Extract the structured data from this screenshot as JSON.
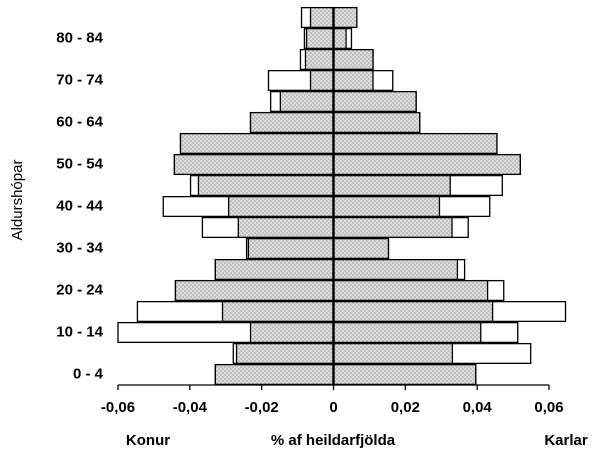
{
  "chart_data": {
    "type": "pyramid",
    "y_label": "Aldurshópar",
    "x_label": "% af heildarfjölda",
    "left_label": "Konur",
    "right_label": "Karlar",
    "categories": [
      "0 - 4",
      null,
      "10 - 14",
      null,
      "20 - 24",
      null,
      "30 - 34",
      null,
      "40 - 44",
      null,
      "50 - 54",
      null,
      "60 - 64",
      null,
      "70 - 74",
      null,
      "80 - 84",
      null
    ],
    "series": [
      {
        "color": "#ffffff",
        "values": [
          -0.0329,
          -0.0279,
          -0.06,
          -0.0546,
          -0.044,
          -0.0329,
          -0.0242,
          -0.0365,
          -0.0474,
          -0.0398,
          -0.0443,
          -0.0426,
          -0.0231,
          -0.0175,
          -0.0181,
          -0.0092,
          -0.0081,
          -0.0089
        ]
      },
      {
        "color": "#ffffff",
        "values": [
          0.0396,
          0.0549,
          0.0513,
          0.0646,
          0.0474,
          0.0365,
          0.0153,
          0.0375,
          0.0435,
          0.047,
          0.052,
          0.0455,
          0.024,
          0.023,
          0.0165,
          0.011,
          0.005,
          0.0065
        ]
      },
      {
        "color": "#c0c0c0",
        "pattern": "dots",
        "values": [
          -0.0329,
          -0.027,
          -0.0231,
          -0.0309,
          -0.044,
          -0.0329,
          -0.0237,
          -0.0265,
          -0.0292,
          -0.0376,
          -0.0443,
          -0.0426,
          -0.0231,
          -0.0148,
          -0.0064,
          -0.0078,
          -0.0075,
          -0.0064
        ]
      },
      {
        "color": "#c0c0c0",
        "pattern": "dots",
        "values": [
          0.0396,
          0.0331,
          0.041,
          0.0443,
          0.0429,
          0.0345,
          0.0153,
          0.033,
          0.0295,
          0.0325,
          0.052,
          0.0455,
          0.024,
          0.023,
          0.011,
          0.011,
          0.0035,
          0.0065
        ]
      }
    ],
    "xlim": [
      -0.06,
      0.06
    ],
    "xticks": [
      {
        "value": -0.06,
        "label": "-0,06"
      },
      {
        "value": -0.04,
        "label": "-0,04"
      },
      {
        "value": -0.02,
        "label": "-0,02"
      },
      0,
      {
        "value": 0.02,
        "label": "0,02"
      },
      {
        "value": 0.04,
        "label": "0,04"
      },
      {
        "value": 0.06,
        "label": "0,06"
      }
    ]
  }
}
